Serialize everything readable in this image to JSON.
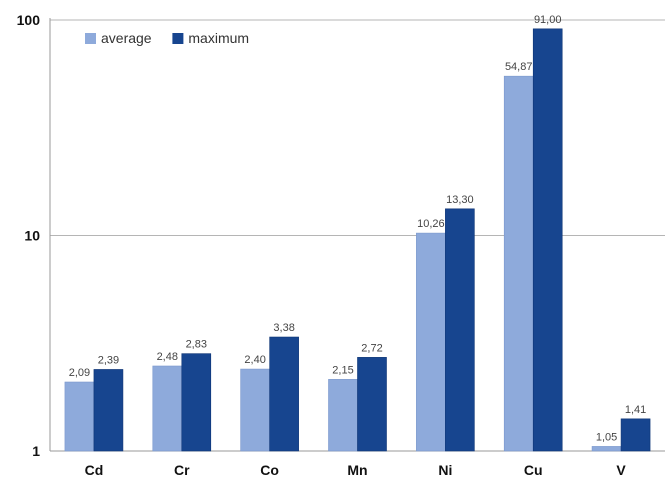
{
  "chart_data": {
    "type": "bar",
    "title": "",
    "xlabel": "",
    "ylabel": "",
    "yscale": "log",
    "ylim": [
      1,
      100
    ],
    "yticks": [
      "1",
      "10",
      "100"
    ],
    "grid": true,
    "legend_position": "top-left",
    "categories": [
      "Cd",
      "Cr",
      "Co",
      "Mn",
      "Ni",
      "Cu",
      "V"
    ],
    "series": [
      {
        "name": "average",
        "color": "#8eaadb",
        "values": [
          2.09,
          2.48,
          2.4,
          2.15,
          10.26,
          54.87,
          1.05
        ],
        "labels": [
          "2,09",
          "2,48",
          "2,40",
          "2,15",
          "10,26",
          "54,87",
          "1,05"
        ]
      },
      {
        "name": "maximum",
        "color": "#17458f",
        "values": [
          2.39,
          2.83,
          3.38,
          2.72,
          13.3,
          91.0,
          1.41
        ],
        "labels": [
          "2,39",
          "2,83",
          "3,38",
          "2,72",
          "13,30",
          "91,00",
          "1,41"
        ]
      }
    ]
  }
}
